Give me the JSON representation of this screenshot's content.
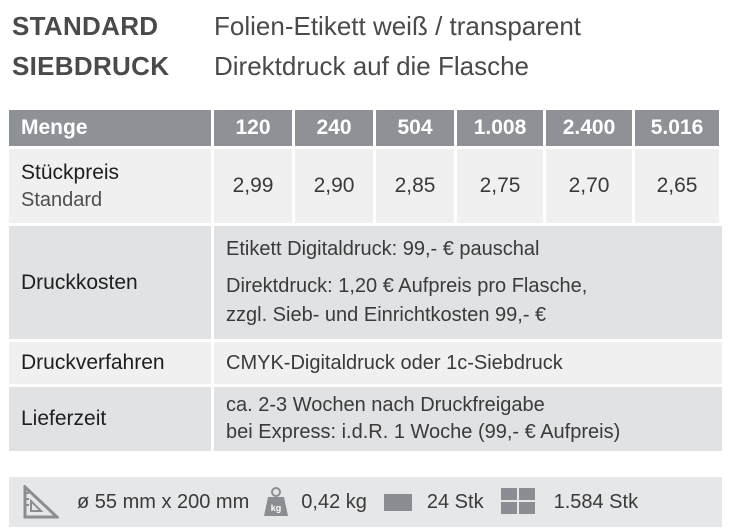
{
  "header": [
    {
      "key": "STANDARD",
      "value": "Folien-Etikett weiß / transparent"
    },
    {
      "key": "SIEBDRUCK",
      "value": "Direktdruck auf die Flasche"
    }
  ],
  "table": {
    "header_label": "Menge",
    "quantities": [
      "120",
      "240",
      "504",
      "1.008",
      "2.400",
      "5.016"
    ],
    "price_row": {
      "label": "Stückpreis",
      "sublabel": "Standard",
      "prices": [
        "2,99",
        "2,90",
        "2,85",
        "2,75",
        "2,70",
        "2,65"
      ]
    },
    "druckkosten": {
      "label": "Druckkosten",
      "line1": "Etikett Digitaldruck: 99,- € pauschal",
      "line2": "Direktdruck: 1,20 € Aufpreis pro Flasche,",
      "line3": "zzgl. Sieb- und Einrichtkosten 99,- €"
    },
    "druckverfahren": {
      "label": "Druckverfahren",
      "value": "CMYK-Digitaldruck oder 1c-Siebdruck"
    },
    "lieferzeit": {
      "label": "Lieferzeit",
      "line1": "ca. 2-3 Wochen nach Druckfreigabe",
      "line2": "bei Express:  i.d.R. 1 Woche (99,- € Aufpreis)"
    }
  },
  "footer": {
    "dimensions": "ø 55 mm x 200 mm",
    "weight_icon_label": "kg",
    "weight": "0,42 kg",
    "box_count": "24 Stk",
    "pallet_count": "1.584 Stk"
  },
  "colors": {
    "header_bg": "#8e9297",
    "row_light": "#f0f0f0",
    "row_mid": "#e0e2e4",
    "footer_bg": "#e6e7e8",
    "icon": "#8a8d91"
  }
}
